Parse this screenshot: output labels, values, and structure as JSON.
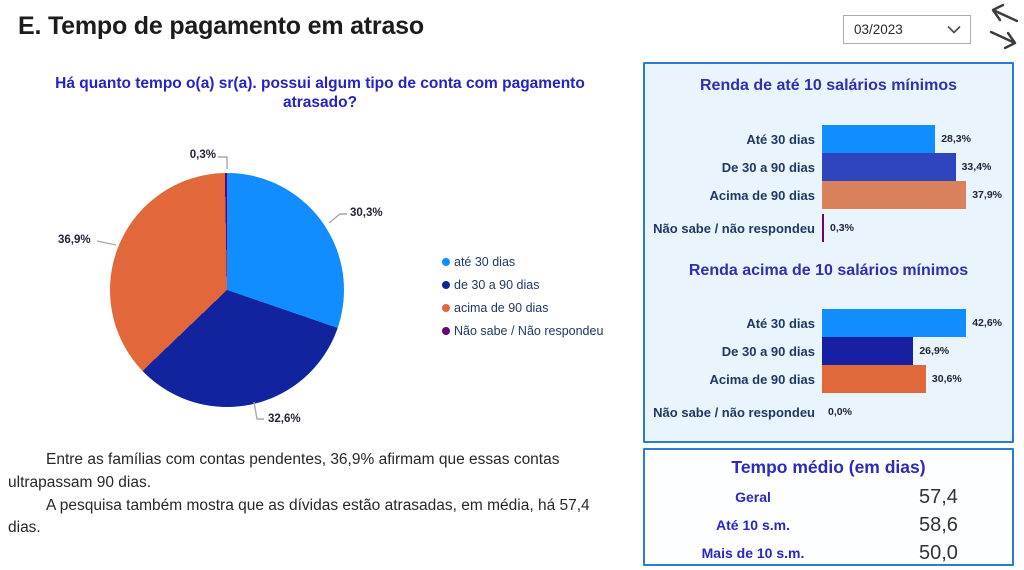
{
  "header": {
    "title": "E. Tempo de pagamento em atraso",
    "period_selector": {
      "value": "03/2023"
    }
  },
  "question_title": "Há quanto tempo o(a) sr(a). possui algum tipo de conta com pagamento atrasado?",
  "notes": {
    "p1": "Entre as famílias com contas pendentes, 36,9% afirmam que essas contas ultrapassam 90 dias.",
    "p2": "A pesquisa também mostra que as dívidas estão atrasadas, em média, há 57,4 dias."
  },
  "colors": {
    "accent_blue": "#118DFF",
    "navy": "#12239E",
    "orange": "#E2683C",
    "purple": "#6B007B",
    "panel_border": "#2B7CD3",
    "panel_bg": "#EAF4FC",
    "title_blue": "#2F2FB0"
  },
  "chart_data": [
    {
      "type": "pie",
      "title": "Há quanto tempo o(a) sr(a). possui algum tipo de conta com pagamento atrasado?",
      "legend_position": "right",
      "slices": [
        {
          "label": "até 30 dias",
          "value": 30.3,
          "value_label": "30,3%",
          "color": "#118DFF"
        },
        {
          "label": "de 30 a 90 dias",
          "value": 32.6,
          "value_label": "32,6%",
          "color": "#12239E"
        },
        {
          "label": "acima de 90 dias",
          "value": 36.9,
          "value_label": "36,9%",
          "color": "#E2683C"
        },
        {
          "label": "Não sabe / Não respondeu",
          "value": 0.3,
          "value_label": "0,3%",
          "color": "#6B007B"
        }
      ]
    },
    {
      "type": "bar",
      "orientation": "horizontal",
      "title": "Renda de até 10 salários mínimos",
      "xmax": 45,
      "rows": [
        {
          "label": "Até 30 dias",
          "value": 28.3,
          "value_label": "28,3%",
          "color": "#118DFF"
        },
        {
          "label": "De 30 a 90 dias",
          "value": 33.4,
          "value_label": "33,4%",
          "color": "#2E45BE"
        },
        {
          "label": "Acima de 90 dias",
          "value": 37.9,
          "value_label": "37,9%",
          "color": "#D9815A"
        },
        {
          "label": "Não sabe / não respondeu",
          "value": 0.3,
          "value_label": "0,3%",
          "color": "#6B007B"
        }
      ]
    },
    {
      "type": "bar",
      "orientation": "horizontal",
      "title": "Renda acima de 10 salários mínimos",
      "xmax": 53,
      "rows": [
        {
          "label": "Até 30 dias",
          "value": 42.6,
          "value_label": "42,6%",
          "color": "#118DFF"
        },
        {
          "label": "De 30 a 90 dias",
          "value": 26.9,
          "value_label": "26,9%",
          "color": "#171FA2"
        },
        {
          "label": "Acima de 90 dias",
          "value": 30.6,
          "value_label": "30,6%",
          "color": "#E0693B"
        },
        {
          "label": "Não sabe / não respondeu",
          "value": 0.0,
          "value_label": "0,0%",
          "color": "#6B007B"
        }
      ]
    },
    {
      "type": "table",
      "title": "Tempo médio (em dias)",
      "rows": [
        {
          "label": "Geral",
          "value": "57,4"
        },
        {
          "label": "Até 10 s.m.",
          "value": "58,6"
        },
        {
          "label": "Mais de 10 s.m.",
          "value": "50,0"
        }
      ]
    }
  ]
}
